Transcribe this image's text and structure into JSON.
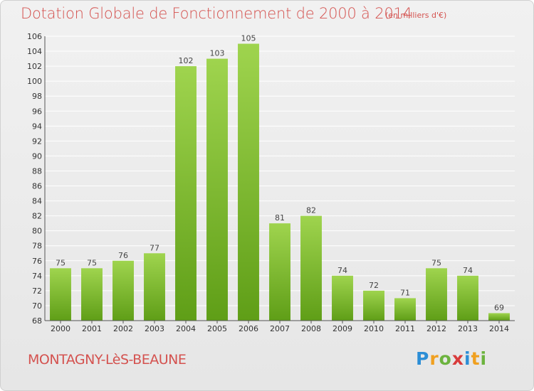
{
  "header": {
    "title": "Dotation Globale de Fonctionnement de 2000 à 2014",
    "subtitle": "(en milliers d'€)"
  },
  "footer": {
    "commune": "MONTAGNY-LèS-BEAUNE",
    "logo": "Proxiti"
  },
  "colors": {
    "bar_top": "#9fd44e",
    "bar_bottom": "#5f9e17",
    "title": "#d4524f",
    "grid": "#ffffff"
  },
  "chart_data": {
    "type": "bar",
    "title": "Dotation Globale de Fonctionnement de 2000 à 2014",
    "subtitle": "(en milliers d'€)",
    "xlabel": "",
    "ylabel": "",
    "categories": [
      "2000",
      "2001",
      "2002",
      "2003",
      "2004",
      "2005",
      "2006",
      "2007",
      "2008",
      "2009",
      "2010",
      "2011",
      "2012",
      "2013",
      "2014"
    ],
    "values": [
      75,
      75,
      76,
      77,
      102,
      103,
      105,
      81,
      82,
      74,
      72,
      71,
      75,
      74,
      69
    ],
    "ylim": [
      68,
      106
    ],
    "yticks": [
      68,
      70,
      72,
      74,
      76,
      78,
      80,
      82,
      84,
      86,
      88,
      90,
      92,
      94,
      96,
      98,
      100,
      102,
      104,
      106
    ],
    "grid": true,
    "data_labels": true
  }
}
